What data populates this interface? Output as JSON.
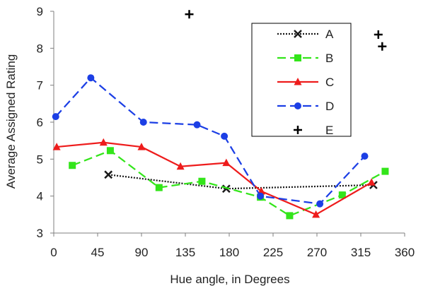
{
  "chart_data": {
    "type": "line",
    "title": "",
    "xlabel": "Hue angle, in Degrees",
    "ylabel": "Average Assigned Rating",
    "xlim": [
      0,
      360
    ],
    "ylim": [
      3,
      9
    ],
    "x_ticks": [
      0,
      45,
      90,
      135,
      180,
      225,
      270,
      315,
      360
    ],
    "y_ticks": [
      3,
      4,
      5,
      6,
      7,
      8,
      9
    ],
    "x_tick_labels": [
      "0",
      "45",
      "90",
      "135",
      "180",
      "225",
      "270",
      "315",
      "360"
    ],
    "y_tick_labels": [
      "3",
      "4",
      "5",
      "6",
      "7",
      "8",
      "9"
    ],
    "grid": false,
    "legend_placement": "top-right",
    "series": [
      {
        "name": "A",
        "color": "#1a1a1a",
        "line_style": "dotted",
        "marker": "x",
        "x": [
          56,
          177,
          328
        ],
        "y": [
          4.58,
          4.2,
          4.3
        ]
      },
      {
        "name": "B",
        "color": "#33e51a",
        "line_style": "dashed",
        "marker": "square",
        "x": [
          19,
          58,
          108,
          152,
          212,
          242,
          296,
          340
        ],
        "y": [
          4.83,
          5.23,
          4.23,
          4.4,
          3.97,
          3.47,
          4.03,
          4.67
        ]
      },
      {
        "name": "C",
        "color": "#ee1c1c",
        "line_style": "solid",
        "marker": "triangle",
        "x": [
          3,
          51,
          90,
          130,
          177,
          213,
          269,
          326
        ],
        "y": [
          5.33,
          5.45,
          5.33,
          4.8,
          4.9,
          4.13,
          3.5,
          4.37
        ]
      },
      {
        "name": "D",
        "color": "#1c3fe5",
        "line_style": "dashed",
        "marker": "circle",
        "x": [
          2,
          38,
          92,
          147,
          175,
          212,
          273,
          319
        ],
        "y": [
          6.15,
          7.2,
          6.0,
          5.93,
          5.62,
          4.0,
          3.79,
          5.08
        ]
      },
      {
        "name": "E",
        "color": "#000000",
        "line_style": "none",
        "marker": "plus",
        "x": [
          139,
          333,
          337
        ],
        "y": [
          8.92,
          8.37,
          8.05
        ]
      }
    ]
  }
}
